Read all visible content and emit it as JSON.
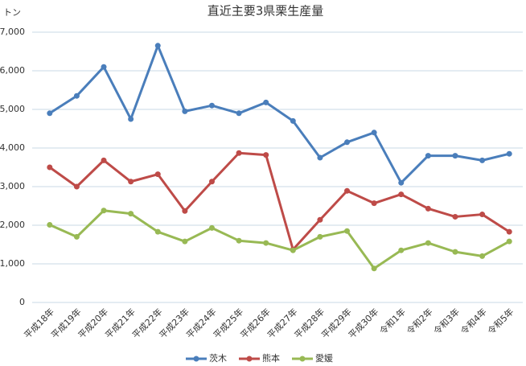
{
  "chart_data": {
    "type": "line",
    "title": "直近主要3県栗生産量",
    "y_label": "トン",
    "categories": [
      "平成18年",
      "平成19年",
      "平成20年",
      "平成21年",
      "平成22年",
      "平成23年",
      "平成24年",
      "平成25年",
      "平成26年",
      "平成27年",
      "平成28年",
      "平成29年",
      "平成30年",
      "令和1年",
      "令和2年",
      "令和3年",
      "令和4年",
      "令和5年"
    ],
    "series": [
      {
        "name": "茨木",
        "color": "#4a7ebb",
        "values": [
          4900,
          5350,
          6100,
          4750,
          6650,
          4950,
          5100,
          4900,
          5180,
          4700,
          3750,
          4150,
          4400,
          3100,
          3800,
          3800,
          3680,
          3850
        ]
      },
      {
        "name": "熊本",
        "color": "#be4b48",
        "values": [
          3500,
          3000,
          3680,
          3130,
          3320,
          2370,
          3130,
          3870,
          3820,
          1370,
          2140,
          2890,
          2570,
          2800,
          2430,
          2220,
          2280,
          1830
        ]
      },
      {
        "name": "愛媛",
        "color": "#98b954",
        "values": [
          2010,
          1700,
          2380,
          2300,
          1830,
          1580,
          1930,
          1600,
          1540,
          1350,
          1700,
          1850,
          880,
          1350,
          1540,
          1310,
          1200,
          1580
        ]
      }
    ],
    "ylim": [
      0,
      7000
    ],
    "yticks": [
      0,
      {
        "value": 1000,
        "label": "1,000"
      },
      {
        "value": 2000,
        "label": "2,000"
      },
      {
        "value": 3000,
        "label": "3,000"
      },
      {
        "value": 4000,
        "label": "4,000"
      },
      {
        "value": 5000,
        "label": "5,000"
      },
      {
        "value": 6000,
        "label": "6,000"
      },
      {
        "value": 7000,
        "label": "7,000"
      }
    ],
    "grid": true,
    "legend": "bottom"
  }
}
